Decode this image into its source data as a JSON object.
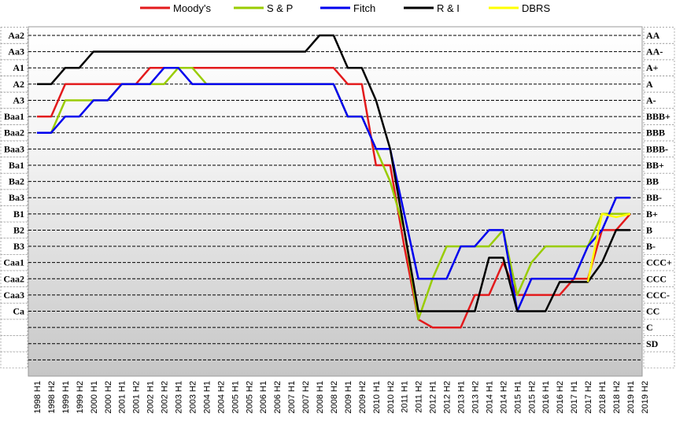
{
  "chart_data": {
    "type": "line",
    "title": "",
    "xlabel": "",
    "ylabel": "",
    "legend_position": "top",
    "grid": true,
    "x": [
      "1998 H1",
      "1998 H2",
      "1999 H1",
      "1999 H2",
      "2000 H1",
      "2000 H2",
      "2001 H1",
      "2001 H2",
      "2002 H1",
      "2002 H2",
      "2003 H1",
      "2003 H2",
      "2004 H1",
      "2004 H2",
      "2005 H1",
      "2005 H2",
      "2006 H1",
      "2006 H2",
      "2007 H1",
      "2007 H2",
      "2008 H1",
      "2008 H2",
      "2009 H1",
      "2009 H2",
      "2010 H1",
      "2010 H2",
      "2011 H1",
      "2011 H2",
      "2012 H1",
      "2012 H2",
      "2013 H1",
      "2013 H2",
      "2014 H1",
      "2014 H2",
      "2015 H1",
      "2015 H2",
      "2016 H1",
      "2016 H2",
      "2017 H1",
      "2017 H2",
      "2018 H1",
      "2018 H2",
      "2019 H1",
      "2019 H2"
    ],
    "moodys_scale": [
      "Aa2",
      "Aa3",
      "A1",
      "A2",
      "A3",
      "Baa1",
      "Baa2",
      "Baa3",
      "Ba1",
      "Ba2",
      "Ba3",
      "B1",
      "B2",
      "B3",
      "Caa1",
      "Caa2",
      "Caa3",
      "Ca",
      "",
      "",
      ""
    ],
    "sp_scale": [
      "AA",
      "AA-",
      "A+",
      "A",
      "A-",
      "BBB+",
      "BBB",
      "BBB-",
      "BB+",
      "BB",
      "BB-",
      "B+",
      "B",
      "B-",
      "CCC+",
      "CCC",
      "CCC-",
      "CC",
      "C",
      "SD",
      ""
    ],
    "series": [
      {
        "name": "Moody's",
        "color": "#e31a1c",
        "points": [
          [
            0,
            5
          ],
          [
            1,
            5
          ],
          [
            2,
            3
          ],
          [
            3,
            3
          ],
          [
            4,
            3
          ],
          [
            5,
            3
          ],
          [
            6,
            3
          ],
          [
            7,
            3
          ],
          [
            8,
            2
          ],
          [
            9,
            2
          ],
          [
            10,
            2
          ],
          [
            11,
            2
          ],
          [
            12,
            2
          ],
          [
            13,
            2
          ],
          [
            14,
            2
          ],
          [
            15,
            2
          ],
          [
            16,
            2
          ],
          [
            17,
            2
          ],
          [
            18,
            2
          ],
          [
            19,
            2
          ],
          [
            20,
            2
          ],
          [
            21,
            2
          ],
          [
            22,
            3
          ],
          [
            23,
            3
          ],
          [
            24,
            8
          ],
          [
            25,
            8
          ],
          [
            26,
            13
          ],
          [
            27,
            17.5
          ],
          [
            28,
            18
          ],
          [
            29,
            18
          ],
          [
            30,
            18
          ],
          [
            31,
            16
          ],
          [
            32,
            16
          ],
          [
            33,
            14
          ],
          [
            34,
            16
          ],
          [
            35,
            16
          ],
          [
            36,
            16
          ],
          [
            37,
            16
          ],
          [
            38,
            15
          ],
          [
            39,
            15
          ],
          [
            40,
            12
          ],
          [
            41,
            12
          ],
          [
            42,
            11
          ]
        ]
      },
      {
        "name": "S & P",
        "color": "#99cc00",
        "points": [
          [
            0,
            6
          ],
          [
            1,
            6
          ],
          [
            2,
            4
          ],
          [
            3,
            4
          ],
          [
            4,
            4
          ],
          [
            5,
            4
          ],
          [
            6,
            3
          ],
          [
            7,
            3
          ],
          [
            8,
            3
          ],
          [
            9,
            3
          ],
          [
            10,
            2
          ],
          [
            11,
            2
          ],
          [
            12,
            3
          ],
          [
            13,
            3
          ],
          [
            14,
            3
          ],
          [
            15,
            3
          ],
          [
            16,
            3
          ],
          [
            17,
            3
          ],
          [
            18,
            3
          ],
          [
            19,
            3
          ],
          [
            20,
            3
          ],
          [
            21,
            3
          ],
          [
            22,
            5
          ],
          [
            23,
            5
          ],
          [
            24,
            7
          ],
          [
            25,
            9
          ],
          [
            26,
            12
          ],
          [
            27,
            17.5
          ],
          [
            28,
            15
          ],
          [
            29,
            13
          ],
          [
            30,
            13
          ],
          [
            31,
            13
          ],
          [
            32,
            13
          ],
          [
            33,
            12
          ],
          [
            34,
            16
          ],
          [
            35,
            14
          ],
          [
            36,
            13
          ],
          [
            37,
            13
          ],
          [
            38,
            13
          ],
          [
            39,
            13
          ],
          [
            40,
            11
          ],
          [
            41,
            11
          ],
          [
            42,
            11
          ]
        ]
      },
      {
        "name": "Fitch",
        "color": "#0000ee",
        "points": [
          [
            0,
            6
          ],
          [
            1,
            6
          ],
          [
            2,
            5
          ],
          [
            3,
            5
          ],
          [
            4,
            4
          ],
          [
            5,
            4
          ],
          [
            6,
            3
          ],
          [
            7,
            3
          ],
          [
            8,
            3
          ],
          [
            9,
            2
          ],
          [
            10,
            2
          ],
          [
            11,
            3
          ],
          [
            12,
            3
          ],
          [
            13,
            3
          ],
          [
            14,
            3
          ],
          [
            15,
            3
          ],
          [
            16,
            3
          ],
          [
            17,
            3
          ],
          [
            18,
            3
          ],
          [
            19,
            3
          ],
          [
            20,
            3
          ],
          [
            21,
            3
          ],
          [
            22,
            5
          ],
          [
            23,
            5
          ],
          [
            24,
            7
          ],
          [
            25,
            7
          ],
          [
            26,
            11
          ],
          [
            27,
            15
          ],
          [
            28,
            15
          ],
          [
            29,
            15
          ],
          [
            30,
            13
          ],
          [
            31,
            13
          ],
          [
            32,
            12
          ],
          [
            33,
            12
          ],
          [
            34,
            17
          ],
          [
            35,
            15
          ],
          [
            36,
            15
          ],
          [
            37,
            15
          ],
          [
            38,
            15
          ],
          [
            39,
            13
          ],
          [
            40,
            12
          ],
          [
            41,
            10
          ],
          [
            42,
            10
          ]
        ]
      },
      {
        "name": "R & I",
        "color": "#000000",
        "points": [
          [
            0,
            3
          ],
          [
            1,
            3
          ],
          [
            2,
            2
          ],
          [
            3,
            2
          ],
          [
            4,
            1
          ],
          [
            5,
            1
          ],
          [
            6,
            1
          ],
          [
            7,
            1
          ],
          [
            8,
            1
          ],
          [
            9,
            1
          ],
          [
            10,
            1
          ],
          [
            11,
            1
          ],
          [
            12,
            1
          ],
          [
            13,
            1
          ],
          [
            14,
            1
          ],
          [
            15,
            1
          ],
          [
            16,
            1
          ],
          [
            17,
            1
          ],
          [
            18,
            1
          ],
          [
            19,
            1
          ],
          [
            20,
            0
          ],
          [
            21,
            0
          ],
          [
            22,
            2
          ],
          [
            23,
            2
          ],
          [
            24,
            4
          ],
          [
            25,
            7
          ],
          [
            26,
            12
          ],
          [
            27,
            17
          ],
          [
            28,
            17
          ],
          [
            29,
            17
          ],
          [
            30,
            17
          ],
          [
            31,
            17
          ],
          [
            32,
            13.7
          ],
          [
            33,
            13.7
          ],
          [
            34,
            17
          ],
          [
            35,
            17
          ],
          [
            36,
            17
          ],
          [
            37,
            15.2
          ],
          [
            38,
            15.2
          ],
          [
            39,
            15.2
          ],
          [
            40,
            14
          ],
          [
            41,
            12
          ],
          [
            42,
            12
          ]
        ]
      },
      {
        "name": "DBRS",
        "color": "#ffff00",
        "points": [
          [
            39,
            15.2
          ],
          [
            40,
            11
          ],
          [
            41,
            11.2
          ],
          [
            42,
            11
          ]
        ]
      }
    ]
  }
}
